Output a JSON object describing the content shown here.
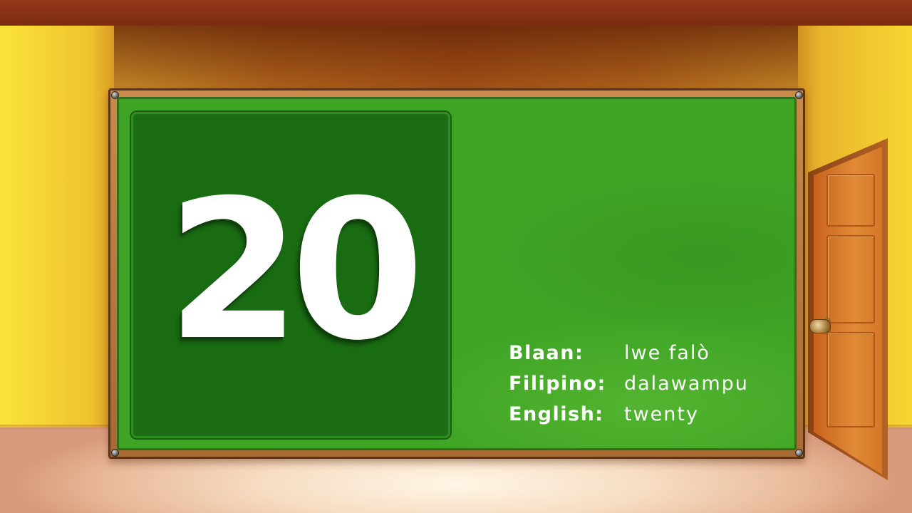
{
  "board": {
    "number": "20"
  },
  "translations": [
    {
      "language": "Blaan:",
      "word": "lwe falò"
    },
    {
      "language": "Filipino:",
      "word": "dalawampu"
    },
    {
      "language": "English:",
      "word": "twenty"
    }
  ],
  "colors": {
    "board_green": "#3ea424",
    "number_panel": "#1a6e14",
    "frame_wood": "#a86a32",
    "wall_yellow": "#f4ce2d",
    "door_orange": "#d57728",
    "text": "#ffffff"
  }
}
